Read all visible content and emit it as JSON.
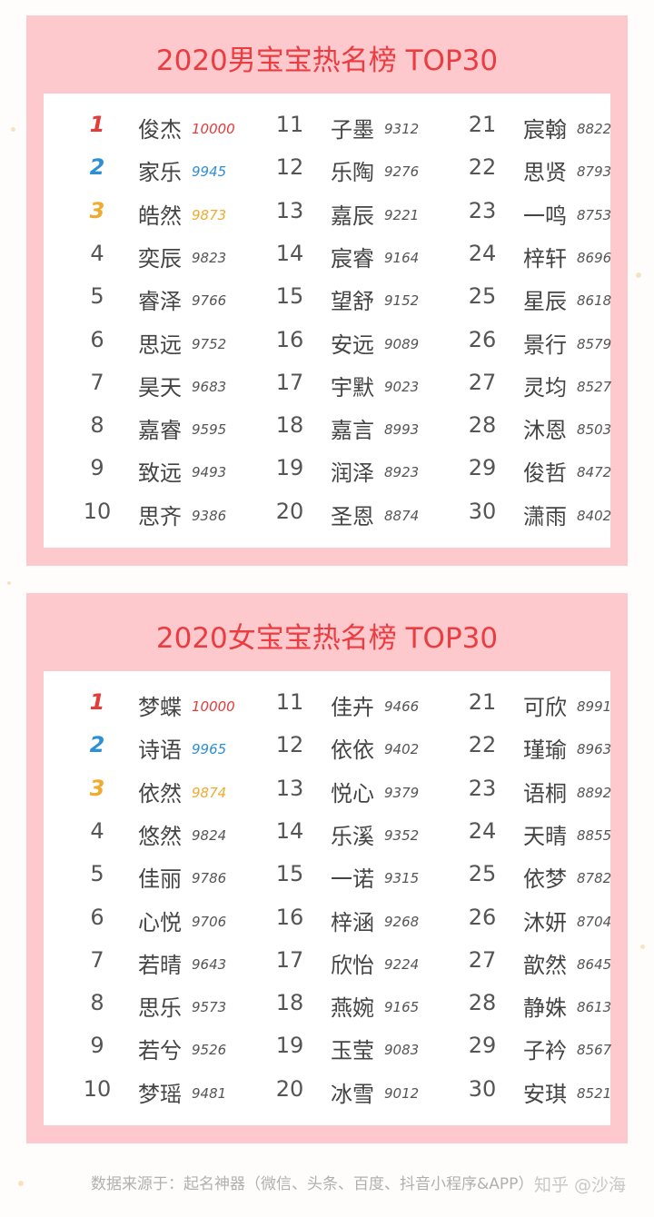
{
  "boys": {
    "title": "2020男宝宝热名榜 TOP30",
    "entries": [
      {
        "rank": "1",
        "name": "俊杰",
        "score": "10000"
      },
      {
        "rank": "2",
        "name": "家乐",
        "score": "9945"
      },
      {
        "rank": "3",
        "name": "皓然",
        "score": "9873"
      },
      {
        "rank": "4",
        "name": "奕辰",
        "score": "9823"
      },
      {
        "rank": "5",
        "name": "睿泽",
        "score": "9766"
      },
      {
        "rank": "6",
        "name": "思远",
        "score": "9752"
      },
      {
        "rank": "7",
        "name": "昊天",
        "score": "9683"
      },
      {
        "rank": "8",
        "name": "嘉睿",
        "score": "9595"
      },
      {
        "rank": "9",
        "name": "致远",
        "score": "9493"
      },
      {
        "rank": "10",
        "name": "思齐",
        "score": "9386"
      },
      {
        "rank": "11",
        "name": "子墨",
        "score": "9312"
      },
      {
        "rank": "12",
        "name": "乐陶",
        "score": "9276"
      },
      {
        "rank": "13",
        "name": "嘉辰",
        "score": "9221"
      },
      {
        "rank": "14",
        "name": "宸睿",
        "score": "9164"
      },
      {
        "rank": "15",
        "name": "望舒",
        "score": "9152"
      },
      {
        "rank": "16",
        "name": "安远",
        "score": "9089"
      },
      {
        "rank": "17",
        "name": "宇默",
        "score": "9023"
      },
      {
        "rank": "18",
        "name": "嘉言",
        "score": "8993"
      },
      {
        "rank": "19",
        "name": "润泽",
        "score": "8923"
      },
      {
        "rank": "20",
        "name": "圣恩",
        "score": "8874"
      },
      {
        "rank": "21",
        "name": "宸翰",
        "score": "8822"
      },
      {
        "rank": "22",
        "name": "思贤",
        "score": "8793"
      },
      {
        "rank": "23",
        "name": "一鸣",
        "score": "8753"
      },
      {
        "rank": "24",
        "name": "梓轩",
        "score": "8696"
      },
      {
        "rank": "25",
        "name": "星辰",
        "score": "8618"
      },
      {
        "rank": "26",
        "name": "景行",
        "score": "8579"
      },
      {
        "rank": "27",
        "name": "灵均",
        "score": "8527"
      },
      {
        "rank": "28",
        "name": "沐恩",
        "score": "8503"
      },
      {
        "rank": "29",
        "name": "俊哲",
        "score": "8472"
      },
      {
        "rank": "30",
        "name": "潇雨",
        "score": "8402"
      }
    ]
  },
  "girls": {
    "title": "2020女宝宝热名榜 TOP30",
    "entries": [
      {
        "rank": "1",
        "name": "梦蝶",
        "score": "10000"
      },
      {
        "rank": "2",
        "name": "诗语",
        "score": "9965"
      },
      {
        "rank": "3",
        "name": "依然",
        "score": "9874"
      },
      {
        "rank": "4",
        "name": "悠然",
        "score": "9824"
      },
      {
        "rank": "5",
        "name": "佳丽",
        "score": "9786"
      },
      {
        "rank": "6",
        "name": "心悦",
        "score": "9706"
      },
      {
        "rank": "7",
        "name": "若晴",
        "score": "9643"
      },
      {
        "rank": "8",
        "name": "思乐",
        "score": "9573"
      },
      {
        "rank": "9",
        "name": "若兮",
        "score": "9526"
      },
      {
        "rank": "10",
        "name": "梦瑶",
        "score": "9481"
      },
      {
        "rank": "11",
        "name": "佳卉",
        "score": "9466"
      },
      {
        "rank": "12",
        "name": "依依",
        "score": "9402"
      },
      {
        "rank": "13",
        "name": "悦心",
        "score": "9379"
      },
      {
        "rank": "14",
        "name": "乐溪",
        "score": "9352"
      },
      {
        "rank": "15",
        "name": "一诺",
        "score": "9315"
      },
      {
        "rank": "16",
        "name": "梓涵",
        "score": "9268"
      },
      {
        "rank": "17",
        "name": "欣怡",
        "score": "9224"
      },
      {
        "rank": "18",
        "name": "燕婉",
        "score": "9165"
      },
      {
        "rank": "19",
        "name": "玉莹",
        "score": "9083"
      },
      {
        "rank": "20",
        "name": "冰雪",
        "score": "9012"
      },
      {
        "rank": "21",
        "name": "可欣",
        "score": "8991"
      },
      {
        "rank": "22",
        "name": "瑾瑜",
        "score": "8963"
      },
      {
        "rank": "23",
        "name": "语桐",
        "score": "8892"
      },
      {
        "rank": "24",
        "name": "天晴",
        "score": "8855"
      },
      {
        "rank": "25",
        "name": "依梦",
        "score": "8782"
      },
      {
        "rank": "26",
        "name": "沐妍",
        "score": "8704"
      },
      {
        "rank": "27",
        "name": "歆然",
        "score": "8645"
      },
      {
        "rank": "28",
        "name": "静姝",
        "score": "8613"
      },
      {
        "rank": "29",
        "name": "子衿",
        "score": "8567"
      },
      {
        "rank": "30",
        "name": "安琪",
        "score": "8521"
      }
    ]
  },
  "footer": {
    "source": "数据来源于：起名神器（微信、头条、百度、抖音小程序&APP）",
    "watermark": "知乎 @沙海"
  },
  "colors": {
    "panel_bg": "#fdc9cc",
    "title": "#ea3c41",
    "rank1": "#e43b3b",
    "rank2": "#2f8fd4",
    "rank3": "#f0aa2e"
  }
}
